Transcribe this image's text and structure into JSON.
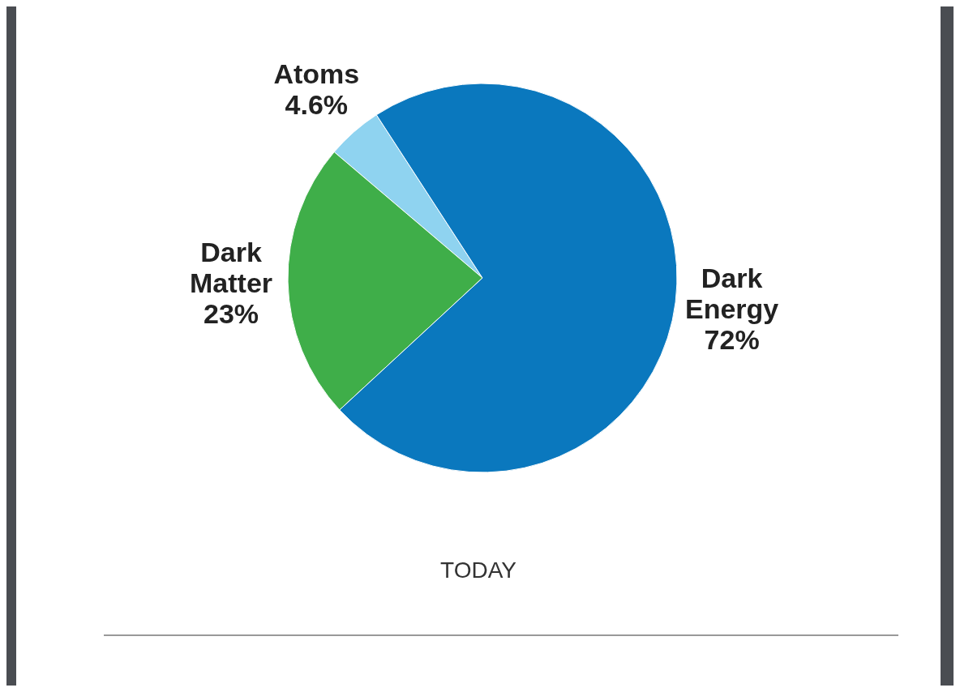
{
  "chart_data": {
    "type": "pie",
    "title": "TODAY",
    "categories": [
      "Atoms",
      "Dark Matter",
      "Dark Energy"
    ],
    "values": [
      4.6,
      23,
      72
    ],
    "value_labels": [
      "4.6%",
      "23%",
      "72%"
    ],
    "colors": [
      "#8fd3f0",
      "#3fae49",
      "#0a78be"
    ]
  }
}
